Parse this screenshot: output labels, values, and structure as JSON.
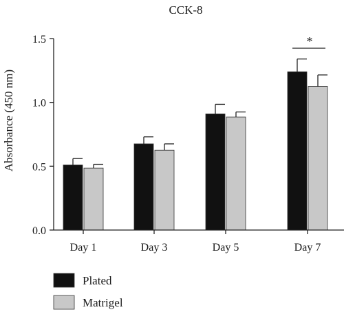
{
  "chart_data": {
    "type": "bar",
    "title": "CCK-8",
    "xlabel": "",
    "ylabel": "Absorbance (450 nm)",
    "categories": [
      "Day 1",
      "Day 3",
      "Day 5",
      "Day 7"
    ],
    "ylim": [
      0,
      1.5
    ],
    "yticks": [
      "0.0",
      "0.5",
      "1.0",
      "1.5"
    ],
    "series": [
      {
        "name": "Plated",
        "color": "#111111",
        "values": [
          0.51,
          0.675,
          0.91,
          1.24
        ],
        "errors": [
          0.05,
          0.055,
          0.075,
          0.1
        ]
      },
      {
        "name": "Matrigel",
        "color": "#c8c8c8",
        "values": [
          0.485,
          0.625,
          0.885,
          1.125
        ],
        "errors": [
          0.03,
          0.05,
          0.04,
          0.09
        ]
      }
    ],
    "annotations": [
      {
        "category": "Day 7",
        "text": "*"
      }
    ],
    "legend": "bottom-left",
    "grid": false
  }
}
